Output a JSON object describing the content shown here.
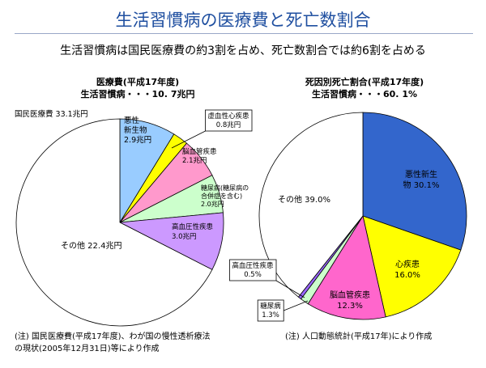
{
  "title": "生活習慣病の医療費と死亡数割合",
  "subtitle": "生活習慣病は国民医療費の約3割を占め、死亡数割合では約6割を占める",
  "notes": {
    "left_line1": "(注) 国民医療費(平成17年度)、わが国の慢性透析療法",
    "left_line2": "の現状(2005年12月31日)等により作成",
    "right": "(注) 人口動態統計(平成17年)により作成"
  },
  "chart_data": [
    {
      "type": "pie",
      "title": "医療費(平成17年度)",
      "subtitle": "生活習慣病・・・10. 7兆円",
      "total_label": "国民医療費 33.1兆円",
      "unit": "兆円",
      "slices": [
        {
          "name": "悪性新生物",
          "value": 2.9,
          "label_lines": [
            "悪性",
            "新生物",
            "2.9兆円"
          ],
          "color": "#99ccff"
        },
        {
          "name": "虚血性心疾患",
          "value": 0.8,
          "label_lines": [
            "虚血性心疾患",
            "0.8兆円"
          ],
          "color": "#ffff00"
        },
        {
          "name": "脳血管疾患",
          "value": 2.1,
          "label_lines": [
            "脳血管疾患",
            "2.1兆円"
          ],
          "color": "#ff99cc"
        },
        {
          "name": "糖尿病(糖尿病の合併症を含む)",
          "value": 2.0,
          "label_lines": [
            "糖尿病(糖尿病の",
            "合併症を含む)",
            "2.0兆円"
          ],
          "color": "#ccffcc"
        },
        {
          "name": "高血圧性疾患",
          "value": 3.0,
          "label_lines": [
            "高血圧性疾患",
            "3.0兆円"
          ],
          "color": "#cc99ff"
        },
        {
          "name": "その他",
          "value": 22.4,
          "label_lines": [
            "その他 22.4兆円"
          ],
          "color": "#ffffff"
        }
      ]
    },
    {
      "type": "pie",
      "title": "死因別死亡割合(平成17年度)",
      "subtitle": "生活習慣病・・・60. 1%",
      "unit": "%",
      "slices": [
        {
          "name": "悪性新生物",
          "value": 30.1,
          "label_lines": [
            "悪性新生",
            "物 30.1%"
          ],
          "color": "#3366cc"
        },
        {
          "name": "心疾患",
          "value": 16.0,
          "label_lines": [
            "心疾患",
            "16.0%"
          ],
          "color": "#ffff00"
        },
        {
          "name": "脳血管疾患",
          "value": 12.3,
          "label_lines": [
            "脳血管疾患",
            "12.3%"
          ],
          "color": "#ff66cc"
        },
        {
          "name": "糖尿病",
          "value": 1.3,
          "label_lines": [
            "糖尿病",
            "1.3%"
          ],
          "color": "#ccffcc"
        },
        {
          "name": "高血圧性疾患",
          "value": 0.5,
          "label_lines": [
            "高血圧性疾患",
            "0.5%"
          ],
          "color": "#9966ff"
        },
        {
          "name": "その他",
          "value": 39.0,
          "label_lines": [
            "その他 39.0%"
          ],
          "color": "#ffffff"
        }
      ]
    }
  ]
}
